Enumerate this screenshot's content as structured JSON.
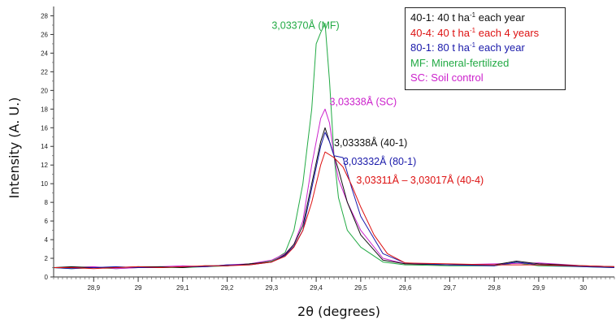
{
  "chart_data": {
    "type": "line",
    "xlabel": "2θ (degrees)",
    "ylabel": "Intensity (A. U.)",
    "xlim": [
      28.81,
      30.07
    ],
    "ylim": [
      0,
      29
    ],
    "x_ticks": [
      28.9,
      29.0,
      29.1,
      29.2,
      29.3,
      29.4,
      29.5,
      29.6,
      29.7,
      29.8,
      29.9,
      30.0
    ],
    "x_tick_labels": [
      "28,9",
      "29",
      "29,1",
      "29,2",
      "29,3",
      "29,4",
      "29,5",
      "29,6",
      "29,7",
      "29,8",
      "29,9",
      "30"
    ],
    "y_ticks": [
      0,
      2,
      4,
      6,
      8,
      10,
      12,
      14,
      16,
      18,
      20,
      22,
      24,
      26,
      28
    ],
    "y_tick_labels": [
      "0",
      "2",
      "4",
      "6",
      "8",
      "10",
      "12",
      "14",
      "16",
      "18",
      "20",
      "22",
      "24",
      "26",
      "28"
    ],
    "grid": false,
    "legend_position": "top-right",
    "series": [
      {
        "color": "#22aa44",
        "points": [
          [
            28.81,
            1.0
          ],
          [
            28.85,
            0.9
          ],
          [
            28.9,
            1.0
          ],
          [
            28.95,
            0.9
          ],
          [
            29.0,
            1.0
          ],
          [
            29.05,
            1.0
          ],
          [
            29.1,
            1.0
          ],
          [
            29.15,
            1.1
          ],
          [
            29.2,
            1.2
          ],
          [
            29.25,
            1.4
          ],
          [
            29.3,
            1.7
          ],
          [
            29.33,
            2.6
          ],
          [
            29.35,
            5.0
          ],
          [
            29.37,
            10.0
          ],
          [
            29.38,
            14.0
          ],
          [
            29.39,
            18.0
          ],
          [
            29.4,
            25.0
          ],
          [
            29.41,
            26.2
          ],
          [
            29.42,
            27.2
          ],
          [
            29.43,
            21.0
          ],
          [
            29.44,
            13.0
          ],
          [
            29.45,
            8.5
          ],
          [
            29.47,
            5.0
          ],
          [
            29.5,
            3.2
          ],
          [
            29.55,
            1.6
          ],
          [
            29.6,
            1.3
          ],
          [
            29.7,
            1.2
          ],
          [
            29.8,
            1.2
          ],
          [
            29.85,
            1.5
          ],
          [
            29.9,
            1.2
          ],
          [
            30.0,
            1.1
          ],
          [
            30.07,
            1.0
          ]
        ]
      },
      {
        "color": "#cc22cc",
        "points": [
          [
            28.81,
            1.0
          ],
          [
            28.85,
            1.0
          ],
          [
            28.9,
            1.1
          ],
          [
            28.95,
            0.9
          ],
          [
            29.0,
            1.0
          ],
          [
            29.05,
            1.1
          ],
          [
            29.1,
            1.2
          ],
          [
            29.15,
            1.1
          ],
          [
            29.2,
            1.3
          ],
          [
            29.25,
            1.4
          ],
          [
            29.3,
            1.8
          ],
          [
            29.33,
            2.5
          ],
          [
            29.35,
            3.5
          ],
          [
            29.37,
            6.0
          ],
          [
            29.39,
            12.0
          ],
          [
            29.41,
            17.0
          ],
          [
            29.42,
            18.0
          ],
          [
            29.43,
            16.5
          ],
          [
            29.44,
            13.0
          ],
          [
            29.45,
            10.5
          ],
          [
            29.47,
            8.0
          ],
          [
            29.5,
            5.0
          ],
          [
            29.55,
            2.0
          ],
          [
            29.6,
            1.4
          ],
          [
            29.7,
            1.3
          ],
          [
            29.8,
            1.4
          ],
          [
            29.9,
            1.5
          ],
          [
            30.0,
            1.2
          ],
          [
            30.07,
            1.1
          ]
        ]
      },
      {
        "color": "#111111",
        "points": [
          [
            28.81,
            1.0
          ],
          [
            28.85,
            1.1
          ],
          [
            28.9,
            1.0
          ],
          [
            28.95,
            1.0
          ],
          [
            29.0,
            1.1
          ],
          [
            29.05,
            1.1
          ],
          [
            29.1,
            1.0
          ],
          [
            29.15,
            1.2
          ],
          [
            29.2,
            1.2
          ],
          [
            29.25,
            1.4
          ],
          [
            29.3,
            1.6
          ],
          [
            29.33,
            2.4
          ],
          [
            29.35,
            3.5
          ],
          [
            29.37,
            5.5
          ],
          [
            29.39,
            10.0
          ],
          [
            29.41,
            14.5
          ],
          [
            29.42,
            16.0
          ],
          [
            29.43,
            14.5
          ],
          [
            29.45,
            11.5
          ],
          [
            29.47,
            8.0
          ],
          [
            29.5,
            4.5
          ],
          [
            29.55,
            1.8
          ],
          [
            29.6,
            1.4
          ],
          [
            29.7,
            1.3
          ],
          [
            29.8,
            1.3
          ],
          [
            29.85,
            1.7
          ],
          [
            29.9,
            1.4
          ],
          [
            30.0,
            1.2
          ],
          [
            30.07,
            1.1
          ]
        ]
      },
      {
        "color": "#1a1aaa",
        "points": [
          [
            28.81,
            1.0
          ],
          [
            28.85,
            0.9
          ],
          [
            28.9,
            1.0
          ],
          [
            28.95,
            1.1
          ],
          [
            29.0,
            1.0
          ],
          [
            29.05,
            1.0
          ],
          [
            29.1,
            1.1
          ],
          [
            29.15,
            1.1
          ],
          [
            29.2,
            1.3
          ],
          [
            29.25,
            1.3
          ],
          [
            29.3,
            1.6
          ],
          [
            29.33,
            2.3
          ],
          [
            29.35,
            3.3
          ],
          [
            29.37,
            5.0
          ],
          [
            29.39,
            9.5
          ],
          [
            29.41,
            14.0
          ],
          [
            29.42,
            15.5
          ],
          [
            29.43,
            14.5
          ],
          [
            29.44,
            13.0
          ],
          [
            29.46,
            12.8
          ],
          [
            29.48,
            9.5
          ],
          [
            29.5,
            6.5
          ],
          [
            29.55,
            2.5
          ],
          [
            29.6,
            1.5
          ],
          [
            29.7,
            1.3
          ],
          [
            29.8,
            1.2
          ],
          [
            29.85,
            1.6
          ],
          [
            29.9,
            1.3
          ],
          [
            30.0,
            1.1
          ],
          [
            30.07,
            1.0
          ]
        ]
      },
      {
        "color": "#dd1111",
        "points": [
          [
            28.81,
            1.0
          ],
          [
            28.85,
            1.0
          ],
          [
            28.9,
            0.9
          ],
          [
            28.95,
            1.0
          ],
          [
            29.0,
            1.1
          ],
          [
            29.05,
            1.0
          ],
          [
            29.1,
            1.1
          ],
          [
            29.15,
            1.2
          ],
          [
            29.2,
            1.2
          ],
          [
            29.25,
            1.3
          ],
          [
            29.3,
            1.6
          ],
          [
            29.33,
            2.2
          ],
          [
            29.35,
            3.2
          ],
          [
            29.37,
            5.0
          ],
          [
            29.39,
            8.0
          ],
          [
            29.41,
            12.0
          ],
          [
            29.42,
            13.4
          ],
          [
            29.44,
            12.8
          ],
          [
            29.46,
            11.8
          ],
          [
            29.48,
            9.8
          ],
          [
            29.5,
            7.5
          ],
          [
            29.53,
            4.5
          ],
          [
            29.56,
            2.5
          ],
          [
            29.6,
            1.5
          ],
          [
            29.7,
            1.4
          ],
          [
            29.8,
            1.3
          ],
          [
            29.9,
            1.3
          ],
          [
            30.0,
            1.2
          ],
          [
            30.07,
            1.1
          ]
        ]
      }
    ],
    "annotations": [
      {
        "text": "3,03370Å (MF)",
        "color": "#22aa44",
        "x": 29.3,
        "y": 26.6
      },
      {
        "text": "3,03338Å (SC)",
        "color": "#cc22cc",
        "x": 29.43,
        "y": 18.4
      },
      {
        "text": "3,03338Å (40-1)",
        "color": "#111111",
        "x": 29.44,
        "y": 14.0
      },
      {
        "text": "3,03332Å (80-1)",
        "color": "#1a1aaa",
        "x": 29.46,
        "y": 12.0
      },
      {
        "text": "3,03311Å – 3,03017Å (40-4)",
        "color": "#dd1111",
        "x": 29.49,
        "y": 10.0
      }
    ]
  },
  "legend": [
    {
      "prefix": "40-1: 40 t ha",
      "sup": "-1",
      "suffix": " each year",
      "color": "#111111"
    },
    {
      "prefix": "40-4: 40 t ha",
      "sup": "-1",
      "suffix": " each 4 years",
      "color": "#dd1111"
    },
    {
      "prefix": "80-1: 80 t ha",
      "sup": "-1",
      "suffix": " each year",
      "color": "#1a1aaa"
    },
    {
      "prefix": "MF: Mineral-fertilized",
      "sup": "",
      "suffix": "",
      "color": "#22aa44"
    },
    {
      "prefix": "SC: Soil control",
      "sup": "",
      "suffix": "",
      "color": "#cc22cc"
    }
  ]
}
